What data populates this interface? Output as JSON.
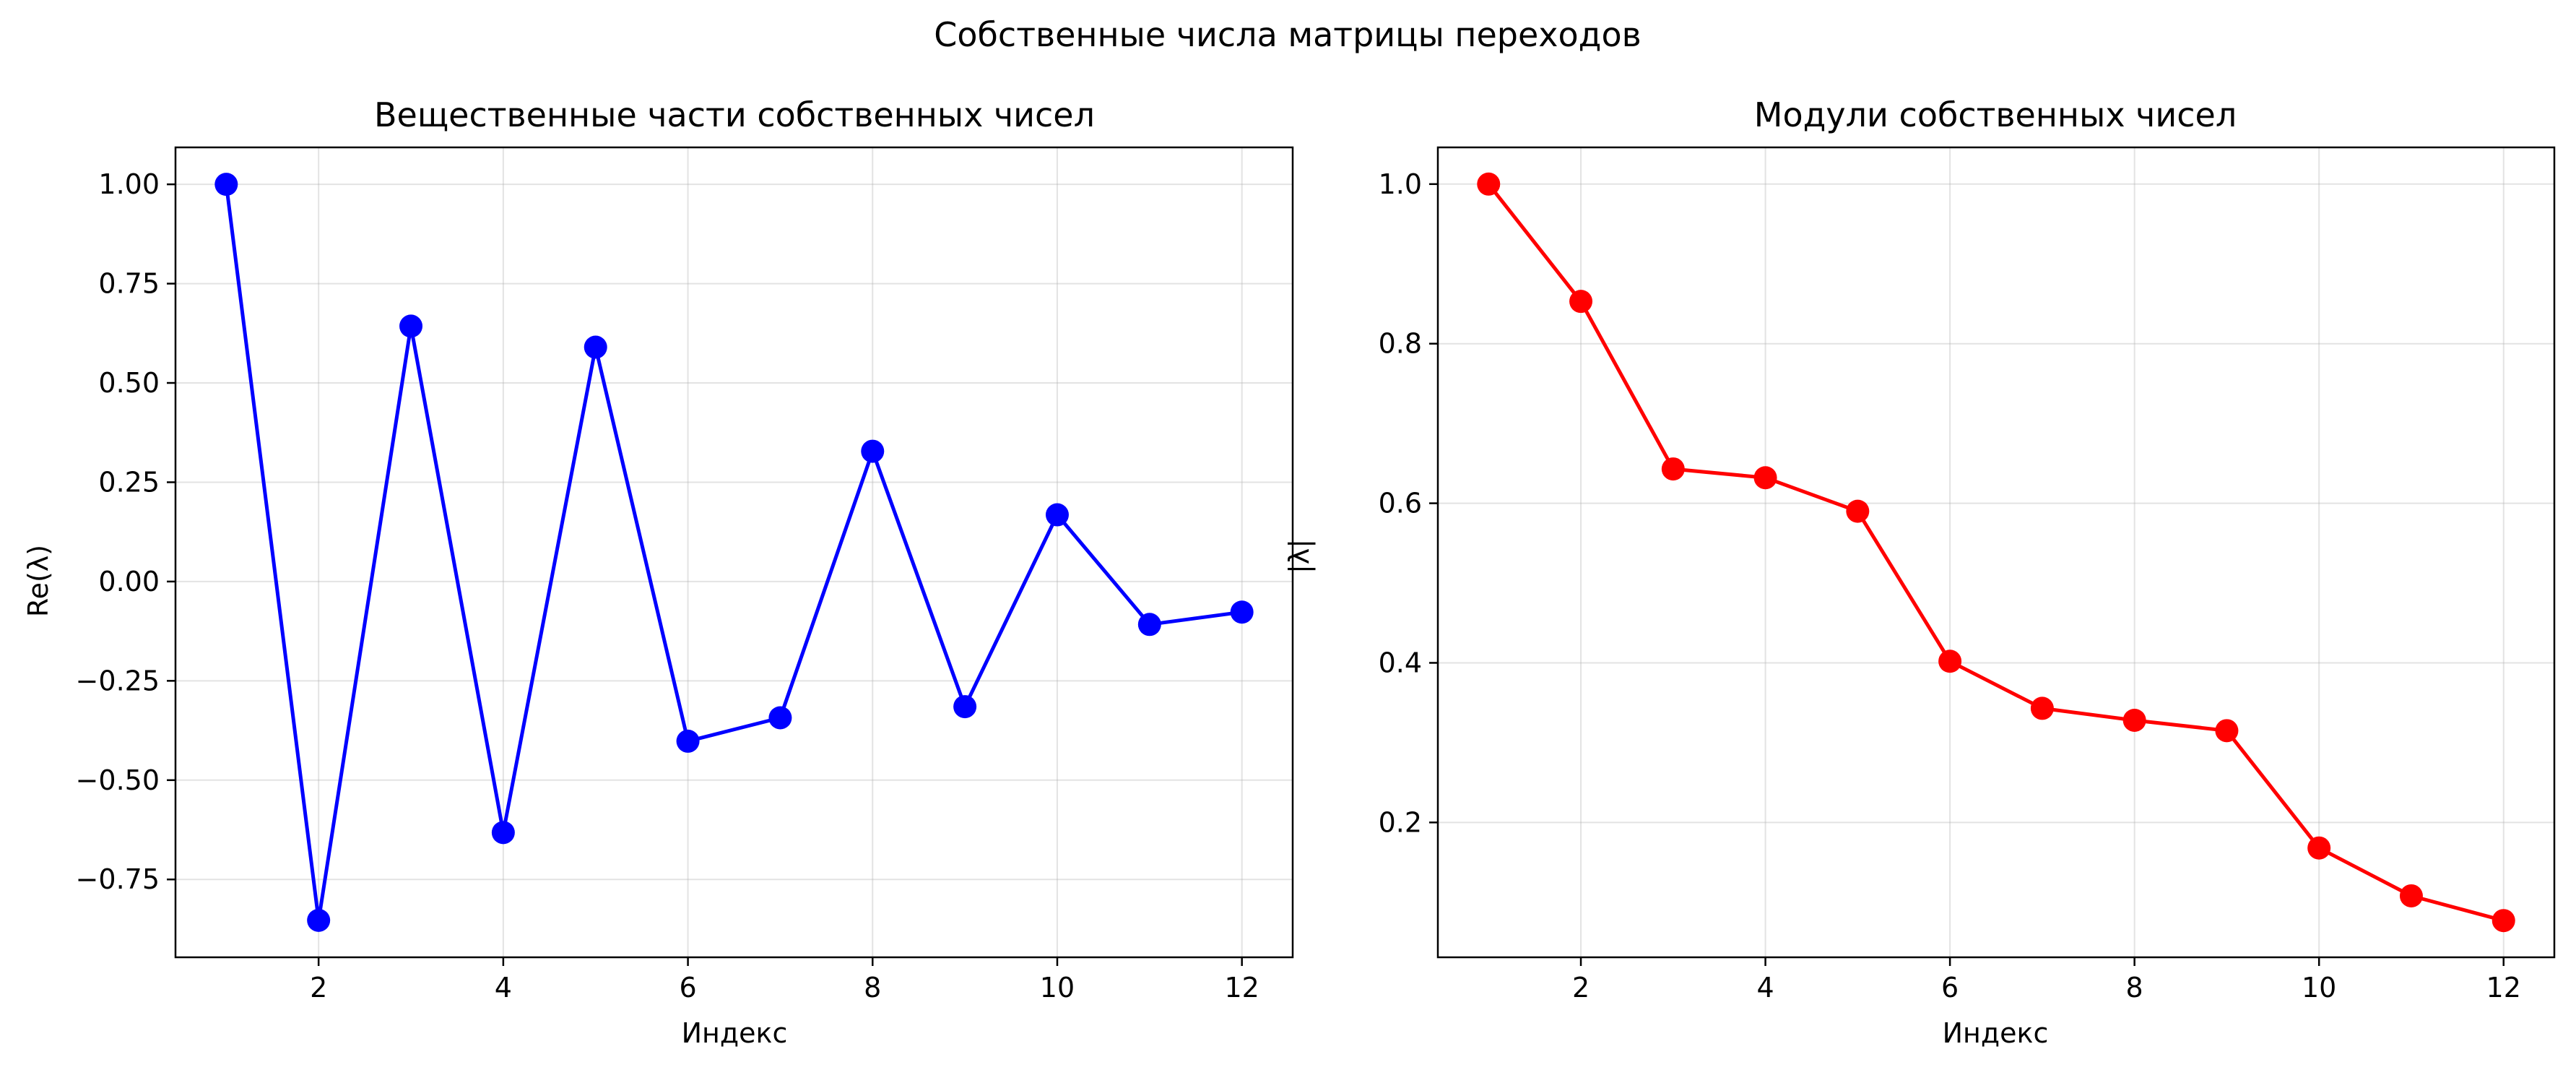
{
  "figure": {
    "suptitle": "Собственные числа матрицы переходов"
  },
  "chart_data": [
    {
      "type": "line",
      "title": "Вещественные части собственных чисел",
      "xlabel": "Индекс",
      "ylabel": "Re(λ)",
      "x": [
        1,
        2,
        3,
        4,
        5,
        6,
        7,
        8,
        9,
        10,
        11,
        12
      ],
      "series": [
        {
          "color": "#0000ff",
          "marker": "circle",
          "values": [
            1.0,
            -0.853,
            0.643,
            -0.632,
            0.59,
            -0.402,
            -0.343,
            0.328,
            -0.315,
            0.168,
            -0.108,
            -0.077
          ]
        }
      ],
      "xlim": [
        0.45,
        12.55
      ],
      "ylim": [
        -0.946,
        1.093
      ],
      "xticks": [
        2,
        4,
        6,
        8,
        10,
        12
      ],
      "xtick_labels": [
        "2",
        "4",
        "6",
        "8",
        "10",
        "12"
      ],
      "yticks": [
        -0.75,
        -0.5,
        -0.25,
        0.0,
        0.25,
        0.5,
        0.75,
        1.0
      ],
      "ytick_labels": [
        "−0.75",
        "−0.50",
        "−0.25",
        "0.00",
        "0.25",
        "0.50",
        "0.75",
        "1.00"
      ],
      "grid": true
    },
    {
      "type": "line",
      "title": "Модули собственных чисел",
      "xlabel": "Индекс",
      "ylabel": "|λ|",
      "x": [
        1,
        2,
        3,
        4,
        5,
        6,
        7,
        8,
        9,
        10,
        11,
        12
      ],
      "series": [
        {
          "color": "#ff0000",
          "marker": "circle",
          "values": [
            1.0,
            0.853,
            0.643,
            0.632,
            0.59,
            0.402,
            0.343,
            0.328,
            0.315,
            0.168,
            0.108,
            0.077
          ]
        }
      ],
      "xlim": [
        0.45,
        12.55
      ],
      "ylim": [
        0.031,
        1.046
      ],
      "xticks": [
        2,
        4,
        6,
        8,
        10,
        12
      ],
      "xtick_labels": [
        "2",
        "4",
        "6",
        "8",
        "10",
        "12"
      ],
      "yticks": [
        0.2,
        0.4,
        0.6,
        0.8,
        1.0
      ],
      "ytick_labels": [
        "0.2",
        "0.4",
        "0.6",
        "0.8",
        "1.0"
      ],
      "grid": true
    }
  ]
}
